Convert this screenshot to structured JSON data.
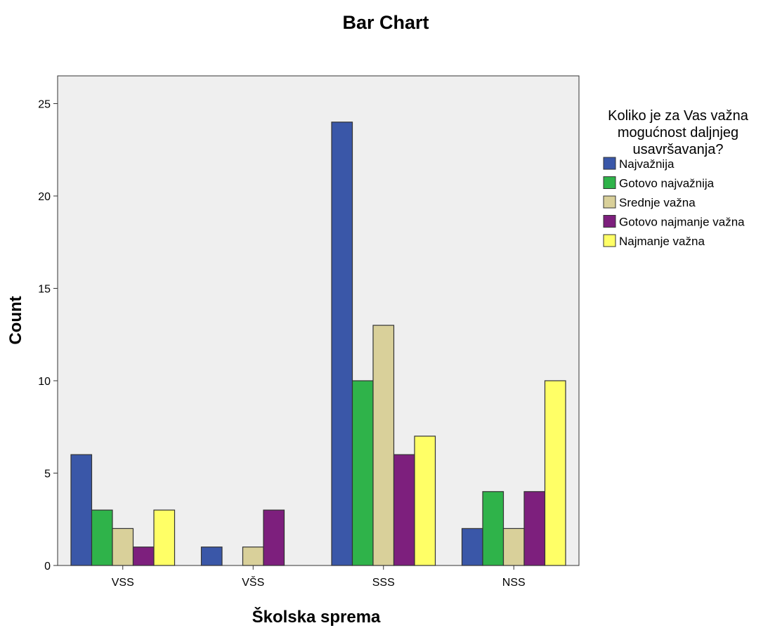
{
  "chart_data": {
    "type": "bar",
    "title": "Bar Chart",
    "xlabel": "Školska sprema",
    "ylabel": "Count",
    "categories": [
      "VSS",
      "VŠS",
      "SSS",
      "NSS"
    ],
    "ylim": [
      0,
      26
    ],
    "yticks": [
      "0",
      "5",
      "10",
      "15",
      "20",
      "25"
    ],
    "grid": false,
    "legend_position": "right",
    "legend_title_lines": [
      "Koliko je za Vas važna",
      "mogućnost daljnjeg",
      "usavršavanja?"
    ],
    "series": [
      {
        "name": "Najvažnija",
        "color": "#3a57a8",
        "values": [
          6,
          1,
          24,
          2
        ]
      },
      {
        "name": "Gotovo najvažnija",
        "color": "#2fb34a",
        "values": [
          3,
          0,
          10,
          4
        ]
      },
      {
        "name": "Srednje važna",
        "color": "#d9d09a",
        "values": [
          2,
          1,
          13,
          2
        ]
      },
      {
        "name": "Gotovo najmanje važna",
        "color": "#7d1f7d",
        "values": [
          1,
          3,
          6,
          4
        ]
      },
      {
        "name": "Najmanje važna",
        "color": "#ffff66",
        "values": [
          3,
          0,
          7,
          10
        ]
      }
    ]
  },
  "colors": {
    "plot_background": "#efefef",
    "bar_border": "#333333"
  }
}
